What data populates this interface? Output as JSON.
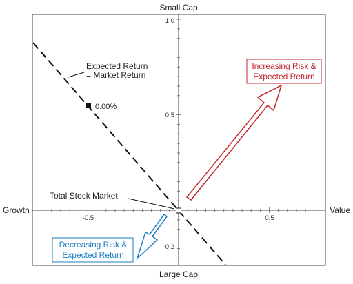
{
  "chart_data": {
    "type": "scatter",
    "axis_labels": {
      "top": "Small Cap",
      "bottom": "Large Cap",
      "left": "Growth",
      "right": "Value"
    },
    "xlim": [
      -0.8,
      0.8
    ],
    "ylim": [
      -0.3,
      1.05
    ],
    "x_ticks": [
      -0.5,
      0.5
    ],
    "y_ticks": [
      1.0,
      0.5,
      -0.2
    ],
    "x_tick_labels": [
      "-0.5",
      "0.5"
    ],
    "y_tick_labels": [
      "1.0",
      "0.5",
      "-0.2"
    ],
    "grid": false,
    "points": [
      {
        "x": -0.5,
        "y": 0.55,
        "label": "0.00%"
      },
      {
        "x": 0.0,
        "y": 0.0,
        "label": ""
      }
    ],
    "lines": [
      {
        "name": "Expected Return = Market Return",
        "style": "dashed",
        "x": [
          -0.8,
          0.25
        ],
        "y": [
          0.88,
          -0.28
        ]
      }
    ],
    "arrows": [
      {
        "text_lines": [
          "Increasing Risk &",
          "Expected Return"
        ],
        "color": "#c0262c",
        "from": [
          0.05,
          0.05
        ],
        "to": [
          0.58,
          0.67
        ]
      },
      {
        "text_lines": [
          "Decreasing Risk &",
          "Expected Return"
        ],
        "color": "#1f7fc0",
        "from": [
          -0.05,
          -0.05
        ],
        "to": [
          -0.22,
          -0.27
        ]
      }
    ],
    "annotations": [
      {
        "text_lines": [
          "Expected Return",
          "= Market Return"
        ]
      },
      {
        "text_lines": [
          "Total Stock Market"
        ]
      }
    ]
  }
}
